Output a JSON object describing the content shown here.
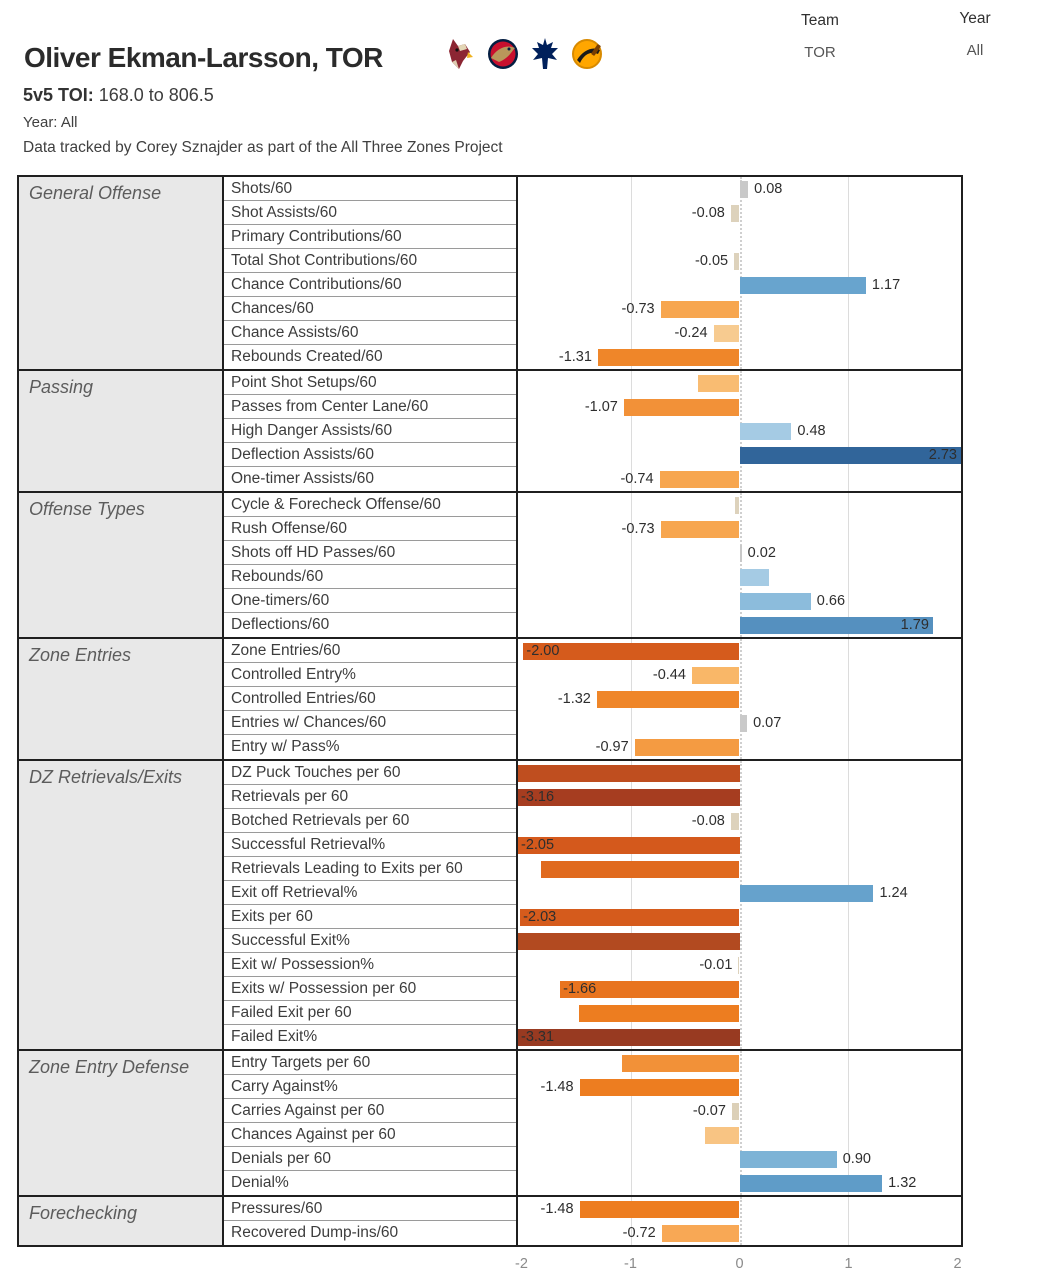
{
  "header": {
    "title": "Oliver Ekman-Larsson, TOR",
    "toi_label": "5v5 TOI:",
    "toi_value": "168.0 to 806.5",
    "year_line": "Year: All",
    "credit": "Data tracked by Corey Sznajder as part of the All Three Zones Project",
    "logos": [
      "coyotes-logo",
      "panthers-logo",
      "maple-leafs-logo",
      "canucks-logo"
    ]
  },
  "filters": {
    "team": {
      "label": "Team",
      "value": "TOR"
    },
    "year": {
      "label": "Year",
      "value": "All"
    }
  },
  "chart_data": {
    "type": "bar",
    "orientation": "horizontal",
    "xlim": [
      -2.05,
      2.05
    ],
    "x_ticks": [
      -2,
      -1,
      0,
      1,
      2
    ],
    "gridlines": [
      -1,
      1
    ],
    "zero_line": "dotted",
    "sections": [
      {
        "name": "General Offense",
        "rows": [
          {
            "metric": "Shots/60",
            "value": 0.08,
            "label": "0.08",
            "color": "#c9c9c9"
          },
          {
            "metric": "Shot Assists/60",
            "value": -0.08,
            "label": "-0.08",
            "color": "#ddd2bc"
          },
          {
            "metric": "Primary Contributions/60",
            "value": null,
            "label": "",
            "color": null
          },
          {
            "metric": "Total Shot Contributions/60",
            "value": -0.05,
            "label": "-0.05",
            "color": "#ddd2bc"
          },
          {
            "metric": "Chance Contributions/60",
            "value": 1.17,
            "label": "1.17",
            "color": "#68a4ce"
          },
          {
            "metric": "Chances/60",
            "value": -0.73,
            "label": "-0.73",
            "color": "#f7a64f"
          },
          {
            "metric": "Chance Assists/60",
            "value": -0.24,
            "label": "-0.24",
            "color": "#f7cb90"
          },
          {
            "metric": "Rebounds Created/60",
            "value": -1.31,
            "label": "-1.31",
            "color": "#ef8629"
          }
        ]
      },
      {
        "name": "Passing",
        "rows": [
          {
            "metric": "Point Shot Setups/60",
            "value": -0.38,
            "label": "",
            "color": "#f9bc72"
          },
          {
            "metric": "Passes from Center Lane/60",
            "value": -1.07,
            "label": "-1.07",
            "color": "#f29138"
          },
          {
            "metric": "High Danger Assists/60",
            "value": 0.48,
            "label": "0.48",
            "color": "#a5cbe4"
          },
          {
            "metric": "Deflection Assists/60",
            "value": 2.73,
            "label": "2.73",
            "color": "#31659a",
            "inside": true
          },
          {
            "metric": "One-timer Assists/60",
            "value": -0.74,
            "label": "-0.74",
            "color": "#f7a64f"
          }
        ]
      },
      {
        "name": "Offense Types",
        "rows": [
          {
            "metric": "Cycle & Forecheck Offense/60",
            "value": -0.04,
            "label": "",
            "color": "#ddd2bc"
          },
          {
            "metric": "Rush Offense/60",
            "value": -0.73,
            "label": "-0.73",
            "color": "#f7a64f"
          },
          {
            "metric": "Shots off HD Passes/60",
            "value": 0.02,
            "label": "0.02",
            "color": "#c9c9c9"
          },
          {
            "metric": "Rebounds/60",
            "value": 0.27,
            "label": "",
            "color": "#a5cbe4"
          },
          {
            "metric": "One-timers/60",
            "value": 0.66,
            "label": "0.66",
            "color": "#8cbcdc"
          },
          {
            "metric": "Deflections/60",
            "value": 1.79,
            "label": "1.79",
            "color": "#5590bf",
            "inside": true
          }
        ]
      },
      {
        "name": "Zone Entries",
        "rows": [
          {
            "metric": "Zone Entries/60",
            "value": -2.0,
            "label": "-2.00",
            "color": "#d55b1c",
            "inside": true
          },
          {
            "metric": "Controlled Entry%",
            "value": -0.44,
            "label": "-0.44",
            "color": "#f9b768"
          },
          {
            "metric": "Controlled Entries/60",
            "value": -1.32,
            "label": "-1.32",
            "color": "#ef8629"
          },
          {
            "metric": "Entries w/ Chances/60",
            "value": 0.07,
            "label": "0.07",
            "color": "#c9c9c9"
          },
          {
            "metric": "Entry w/ Pass%",
            "value": -0.97,
            "label": "-0.97",
            "color": "#f49b42"
          }
        ]
      },
      {
        "name": "DZ Retrievals/Exits",
        "rows": [
          {
            "metric": "DZ Puck Touches per 60",
            "value": -2.5,
            "label": "",
            "color": "#bf4e1f",
            "clipped_at_axis": true
          },
          {
            "metric": "Retrievals per 60",
            "value": -3.16,
            "label": "-3.16",
            "color": "#a63d20",
            "inside": true,
            "clipped_at_axis": true
          },
          {
            "metric": "Botched Retrievals per 60",
            "value": -0.08,
            "label": "-0.08",
            "color": "#ddd2bc"
          },
          {
            "metric": "Successful Retrieval%",
            "value": -2.05,
            "label": "-2.05",
            "color": "#d4591c",
            "inside": true
          },
          {
            "metric": "Retrievals Leading to Exits per 60",
            "value": -1.84,
            "label": "",
            "color": "#e06a1e"
          },
          {
            "metric": "Exit off Retrieval%",
            "value": 1.24,
            "label": "1.24",
            "color": "#66a2cc"
          },
          {
            "metric": "Exits per 60",
            "value": -2.03,
            "label": "-2.03",
            "color": "#d55b1c",
            "inside": true
          },
          {
            "metric": "Successful Exit%",
            "value": -2.5,
            "label": "",
            "color": "#b24a20",
            "clipped_at_axis": true
          },
          {
            "metric": "Exit w/ Possession%",
            "value": -0.01,
            "label": "-0.01",
            "color": "#ddd2bc"
          },
          {
            "metric": "Exits w/ Possession per 60",
            "value": -1.66,
            "label": "-1.66",
            "color": "#e8741f",
            "inside": true
          },
          {
            "metric": "Failed Exit per 60",
            "value": -1.49,
            "label": "",
            "color": "#ed7d20"
          },
          {
            "metric": "Failed Exit%",
            "value": -3.31,
            "label": "-3.31",
            "color": "#983a21",
            "inside": true,
            "clipped_at_axis": true
          }
        ]
      },
      {
        "name": "Zone Entry Defense",
        "rows": [
          {
            "metric": "Entry Targets per 60",
            "value": -1.09,
            "label": "",
            "color": "#f29138"
          },
          {
            "metric": "Carry Against%",
            "value": -1.48,
            "label": "-1.48",
            "color": "#ed7d20"
          },
          {
            "metric": "Carries Against per 60",
            "value": -0.07,
            "label": "-0.07",
            "color": "#dcd0b8"
          },
          {
            "metric": "Chances Against per 60",
            "value": -0.32,
            "label": "",
            "color": "#f8c483"
          },
          {
            "metric": "Denials per 60",
            "value": 0.9,
            "label": "0.90",
            "color": "#7db3d6"
          },
          {
            "metric": "Denial%",
            "value": 1.32,
            "label": "1.32",
            "color": "#5f9cc8"
          }
        ]
      },
      {
        "name": "Forechecking",
        "rows": [
          {
            "metric": "Pressures/60",
            "value": -1.48,
            "label": "-1.48",
            "color": "#ed7d20"
          },
          {
            "metric": "Recovered Dump-ins/60",
            "value": -0.72,
            "label": "-0.72",
            "color": "#f8a855"
          }
        ]
      }
    ]
  }
}
